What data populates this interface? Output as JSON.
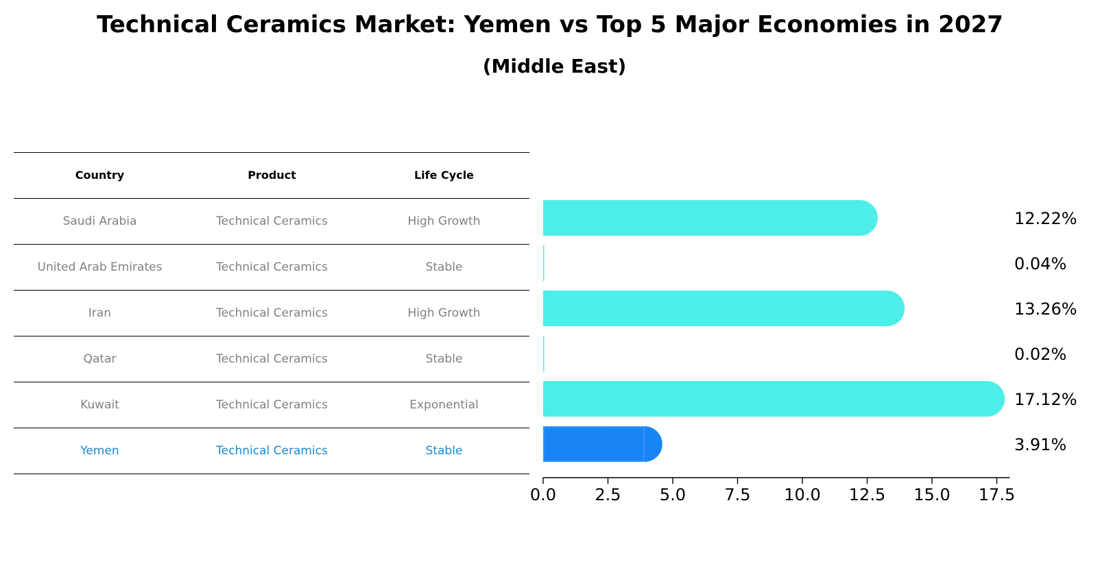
{
  "title": "Technical Ceramics Market: Yemen vs Top 5 Major Economies in 2027",
  "subtitle": "(Middle East)",
  "table": {
    "headers": [
      "Country",
      "Product",
      "Life Cycle"
    ],
    "rows": [
      [
        "Saudi Arabia",
        "Technical Ceramics",
        "High Growth"
      ],
      [
        "United Arab Emirates",
        "Technical Ceramics",
        "Stable"
      ],
      [
        "Iran",
        "Technical Ceramics",
        "High Growth"
      ],
      [
        "Qatar",
        "Technical Ceramics",
        "Stable"
      ],
      [
        "Kuwait",
        "Technical Ceramics",
        "Exponential"
      ],
      [
        "Yemen",
        "Technical Ceramics",
        "Stable"
      ]
    ]
  },
  "chart_data": {
    "type": "bar",
    "orientation": "horizontal",
    "categories": [
      "Saudi Arabia",
      "United Arab Emirates",
      "Iran",
      "Qatar",
      "Kuwait",
      "Yemen"
    ],
    "values": [
      12.22,
      0.04,
      13.26,
      0.02,
      17.12,
      3.91
    ],
    "value_labels": [
      "12.22%",
      "0.04%",
      "13.26%",
      "0.02%",
      "17.12%",
      "3.91%"
    ],
    "xlim": [
      0,
      18
    ],
    "xticks": [
      0.0,
      2.5,
      5.0,
      7.5,
      10.0,
      12.5,
      15.0,
      17.5
    ],
    "xtick_labels": [
      "0.0",
      "2.5",
      "5.0",
      "7.5",
      "10.0",
      "12.5",
      "15.0",
      "17.5"
    ],
    "xlabel": "",
    "ylabel": "",
    "grid": false,
    "highlight_index": 5,
    "colors": {
      "bar": "#4deeea",
      "highlight_bar": "#1984f5",
      "highlight_text": "#1a8ad0",
      "muted_text": "#808080"
    }
  }
}
